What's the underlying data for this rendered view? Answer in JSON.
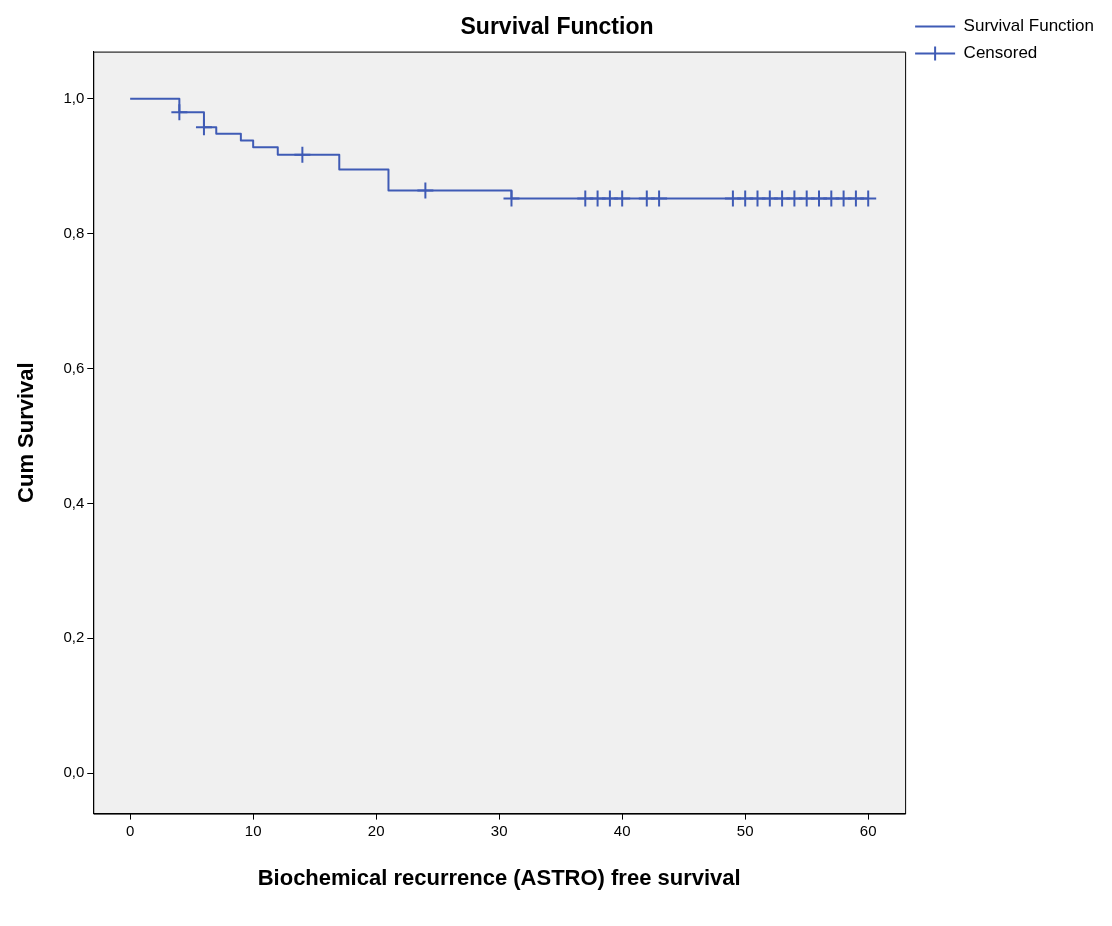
{
  "chart_data": {
    "type": "step",
    "title": "Survival Function",
    "xlabel": "Biochemical recurrence (ASTRO) free survival",
    "ylabel": "Cum Survival",
    "xlim": [
      -3,
      63
    ],
    "xticks": [
      0,
      10,
      20,
      30,
      40,
      50,
      60
    ],
    "ylim": [
      -0.06,
      1.07
    ],
    "yticks": [
      {
        "value": 0,
        "label": "0,0"
      },
      {
        "value": 0.2,
        "label": "0,2"
      },
      {
        "value": 0.4,
        "label": "0,4"
      },
      {
        "value": 0.6,
        "label": "0,6"
      },
      {
        "value": 0.8,
        "label": "0,8"
      },
      {
        "value": 1,
        "label": "1,0"
      }
    ],
    "grid": false,
    "legend": "top right",
    "series": [
      {
        "name": "Survival Function",
        "marker": "none",
        "color": "#3f5bb5",
        "x": [
          0,
          4,
          6,
          7,
          9,
          10,
          12,
          17,
          21,
          31,
          60
        ],
        "values": [
          1.0,
          0.98,
          0.958,
          0.948,
          0.938,
          0.928,
          0.917,
          0.895,
          0.864,
          0.852,
          0.852
        ]
      },
      {
        "name": "Censored",
        "type": "scatter",
        "marker": "cross",
        "color": "#3f5bb5",
        "x": [
          4,
          6,
          14,
          24,
          31,
          37,
          38,
          39,
          40,
          42,
          43,
          49,
          50,
          51,
          52,
          53,
          54,
          55,
          56,
          57,
          58,
          59,
          60
        ],
        "values": [
          0.98,
          0.958,
          0.917,
          0.864,
          0.852,
          0.852,
          0.852,
          0.852,
          0.852,
          0.852,
          0.852,
          0.852,
          0.852,
          0.852,
          0.852,
          0.852,
          0.852,
          0.852,
          0.852,
          0.852,
          0.852,
          0.852,
          0.852
        ]
      }
    ]
  }
}
